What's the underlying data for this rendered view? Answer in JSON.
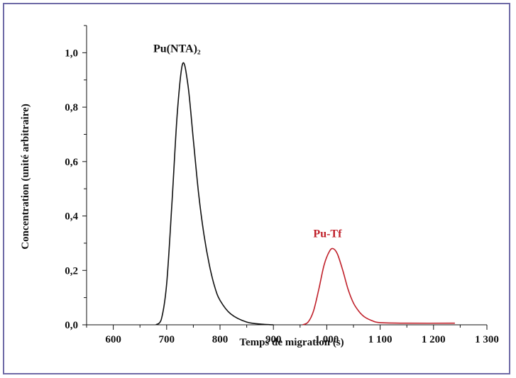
{
  "chart_data": {
    "type": "line",
    "xlabel": "Temps de migration (s)",
    "ylabel": "Concentration (unité arbitraire)",
    "xlim": [
      550,
      1300
    ],
    "ylim": [
      0,
      1.1
    ],
    "x_ticks": [
      600,
      700,
      800,
      900,
      1000,
      1100,
      1200,
      1300
    ],
    "x_tick_labels": [
      "600",
      "700",
      "800",
      "900",
      "1 000",
      "1 100",
      "1 200",
      "1 300"
    ],
    "y_ticks": [
      0,
      0.2,
      0.4,
      0.6,
      0.8,
      1.0
    ],
    "y_tick_labels": [
      "0,0",
      "0,2",
      "0,4",
      "0,6",
      "0,8",
      "1,0"
    ],
    "grid": false,
    "series": [
      {
        "name": "Pu(NTA)₂",
        "color": "#111111",
        "points": [
          [
            680,
            0
          ],
          [
            690,
            0.02
          ],
          [
            700,
            0.15
          ],
          [
            710,
            0.45
          ],
          [
            720,
            0.78
          ],
          [
            730,
            0.96
          ],
          [
            740,
            0.88
          ],
          [
            750,
            0.68
          ],
          [
            760,
            0.48
          ],
          [
            770,
            0.33
          ],
          [
            780,
            0.22
          ],
          [
            790,
            0.14
          ],
          [
            800,
            0.09
          ],
          [
            820,
            0.04
          ],
          [
            850,
            0.01
          ],
          [
            880,
            0.002
          ],
          [
            900,
            0.0
          ]
        ]
      },
      {
        "name": "Pu-Tf",
        "color": "#c0202a",
        "points": [
          [
            955,
            0
          ],
          [
            965,
            0.01
          ],
          [
            975,
            0.05
          ],
          [
            985,
            0.13
          ],
          [
            995,
            0.22
          ],
          [
            1005,
            0.27
          ],
          [
            1012,
            0.28
          ],
          [
            1020,
            0.26
          ],
          [
            1030,
            0.2
          ],
          [
            1040,
            0.13
          ],
          [
            1050,
            0.08
          ],
          [
            1060,
            0.05
          ],
          [
            1070,
            0.03
          ],
          [
            1085,
            0.015
          ],
          [
            1100,
            0.008
          ],
          [
            1150,
            0.006
          ],
          [
            1240,
            0.006
          ]
        ]
      }
    ]
  }
}
